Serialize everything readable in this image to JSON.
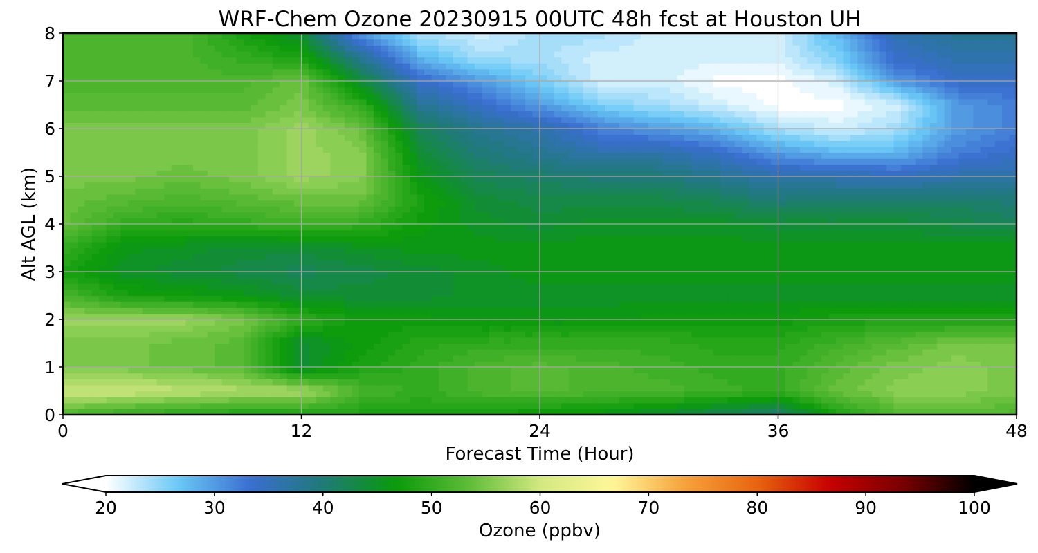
{
  "chart_data": {
    "type": "heatmap",
    "title": "WRF-Chem Ozone  20230915 00UTC 48h fcst at Houston UH",
    "xlabel": "Forecast Time (Hour)",
    "ylabel": "Alt AGL (km)",
    "xlim": [
      0,
      48
    ],
    "ylim": [
      0,
      8
    ],
    "xticks": [
      0,
      12,
      24,
      36,
      48
    ],
    "xtick_labels": [
      "0",
      "12",
      "24",
      "36",
      "48"
    ],
    "yticks": [
      0,
      1,
      2,
      3,
      4,
      5,
      6,
      7,
      8
    ],
    "ytick_labels": [
      "0",
      "1",
      "2",
      "3",
      "4",
      "5",
      "6",
      "7",
      "8"
    ],
    "grid": true,
    "colorbar": {
      "label": "Ozone  (ppbv)",
      "orientation": "horizontal",
      "min": 20,
      "max": 100,
      "extend": "both",
      "ticks": [
        20,
        30,
        40,
        50,
        60,
        70,
        80,
        90,
        100
      ],
      "tick_labels": [
        "20",
        "30",
        "40",
        "50",
        "60",
        "70",
        "80",
        "90",
        "100"
      ],
      "colors": [
        "#ffffff",
        "#6ac8f6",
        "#3a6ed0",
        "#1f7a78",
        "#0a9a0a",
        "#5cbc36",
        "#d2e880",
        "#fff79a",
        "#f6a23a",
        "#e8640e",
        "#c80000",
        "#7a0000",
        "#000000"
      ]
    },
    "x": [
      0,
      3,
      6,
      9,
      12,
      15,
      18,
      21,
      24,
      27,
      30,
      33,
      36,
      39,
      42,
      45,
      48
    ],
    "y": [
      0,
      0.5,
      1,
      1.5,
      2,
      2.5,
      3,
      3.5,
      4,
      4.5,
      5,
      5.5,
      6,
      6.5,
      7,
      7.5,
      8
    ],
    "z": [
      [
        52,
        50,
        49,
        48,
        48,
        48,
        48,
        48,
        46,
        46,
        44,
        42,
        40,
        48,
        52,
        53,
        52
      ],
      [
        60,
        60,
        59,
        58,
        58,
        52,
        50,
        52,
        53,
        52,
        52,
        51,
        50,
        54,
        56,
        56,
        55
      ],
      [
        55,
        55,
        54,
        53,
        44,
        48,
        50,
        52,
        53,
        52,
        51,
        50,
        50,
        53,
        55,
        56,
        55
      ],
      [
        55,
        55,
        54,
        53,
        44,
        47,
        49,
        50,
        50,
        50,
        50,
        49,
        49,
        51,
        53,
        55,
        55
      ],
      [
        57,
        57,
        57,
        55,
        50,
        47,
        47,
        46,
        46,
        46,
        47,
        47,
        47,
        48,
        48,
        48,
        48
      ],
      [
        52,
        48,
        47,
        46,
        44,
        44,
        44,
        45,
        45,
        45,
        45,
        45,
        45,
        45,
        45,
        45,
        45
      ],
      [
        48,
        45,
        44,
        43,
        42,
        43,
        44,
        45,
        46,
        46,
        46,
        46,
        46,
        46,
        46,
        46,
        46
      ],
      [
        50,
        46,
        45,
        44,
        44,
        45,
        46,
        46,
        46,
        46,
        46,
        46,
        46,
        46,
        46,
        46,
        46
      ],
      [
        54,
        50,
        49,
        50,
        51,
        50,
        47,
        45,
        44,
        45,
        45,
        45,
        44,
        44,
        44,
        43,
        42
      ],
      [
        54,
        53,
        52,
        53,
        54,
        54,
        48,
        44,
        43,
        43,
        43,
        42,
        40,
        40,
        41,
        41,
        40
      ],
      [
        55,
        55,
        54,
        55,
        57,
        56,
        46,
        42,
        41,
        40,
        40,
        38,
        36,
        36,
        35,
        36,
        36
      ],
      [
        55,
        55,
        55,
        55,
        57,
        56,
        44,
        40,
        38,
        36,
        36,
        34,
        30,
        28,
        28,
        32,
        34
      ],
      [
        55,
        55,
        55,
        55,
        57,
        54,
        42,
        38,
        36,
        32,
        30,
        28,
        24,
        22,
        24,
        30,
        32
      ],
      [
        53,
        53,
        53,
        53,
        55,
        50,
        38,
        34,
        30,
        26,
        24,
        22,
        20,
        20,
        22,
        30,
        32
      ],
      [
        52,
        52,
        52,
        52,
        54,
        44,
        34,
        30,
        26,
        22,
        22,
        20,
        20,
        22,
        30,
        34,
        34
      ],
      [
        52,
        52,
        52,
        50,
        48,
        38,
        28,
        24,
        24,
        22,
        22,
        22,
        22,
        26,
        34,
        36,
        36
      ],
      [
        52,
        52,
        52,
        48,
        44,
        30,
        24,
        22,
        24,
        24,
        22,
        22,
        22,
        28,
        36,
        38,
        38
      ]
    ]
  }
}
